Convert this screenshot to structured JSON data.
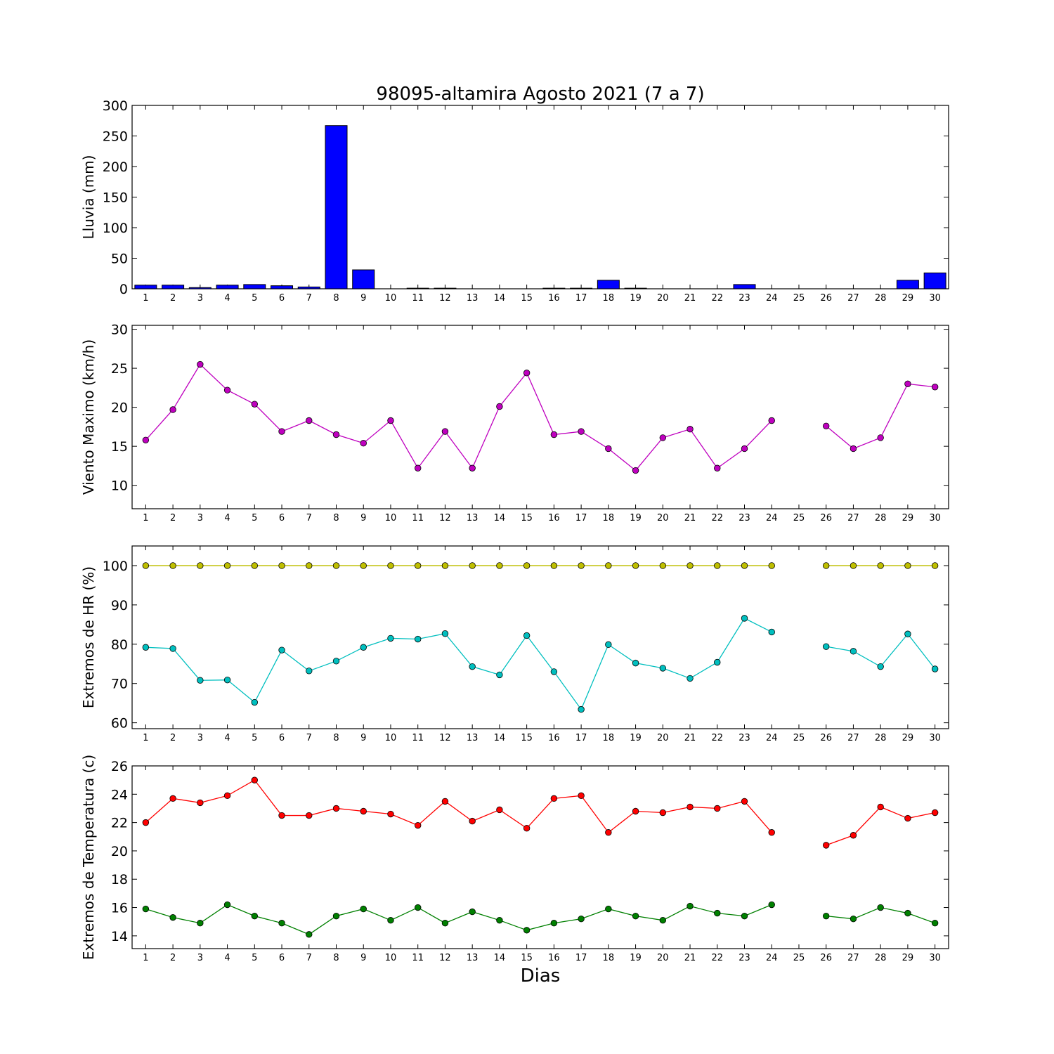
{
  "chart_data": {
    "title": "98095-altamira Agosto 2021  (7 a 7)",
    "xlabel": "Dias",
    "x": [
      1,
      2,
      3,
      4,
      5,
      6,
      7,
      8,
      9,
      10,
      11,
      12,
      13,
      14,
      15,
      16,
      17,
      18,
      19,
      20,
      21,
      22,
      23,
      24,
      25,
      26,
      27,
      28,
      29,
      30
    ],
    "x_tick_labels": [
      "1",
      "2",
      "3",
      "4",
      "5",
      "6",
      "7",
      "8",
      "9",
      "10",
      "11",
      "12",
      "13",
      "14",
      "15",
      "16",
      "17",
      "18",
      "19",
      "20",
      "21",
      "22",
      "23",
      "24",
      "25",
      "26",
      "27",
      "28",
      "29",
      "30"
    ],
    "panels": [
      {
        "type": "bar",
        "ylabel": "Lluvia (mm)",
        "ylim": [
          0,
          300
        ],
        "yticks": [
          0,
          50,
          100,
          150,
          200,
          250,
          300
        ],
        "series": [
          {
            "color": "#0000ff",
            "values": [
              6,
              6,
              2,
              6,
              7,
              5,
              3,
              267,
              31,
              0,
              1,
              1,
              0,
              0,
              0,
              1,
              1,
              14,
              1,
              0,
              0,
              0,
              7,
              0,
              0,
              0,
              0,
              0,
              14,
              26
            ]
          }
        ]
      },
      {
        "type": "line",
        "ylabel": "Viento Maximo (km/h)",
        "ylim": [
          7,
          30.5
        ],
        "yticks": [
          10,
          15,
          20,
          25,
          30
        ],
        "series": [
          {
            "color": "#bf00bf",
            "values": [
              15.8,
              19.7,
              25.5,
              22.2,
              20.4,
              16.9,
              18.3,
              16.5,
              15.4,
              18.3,
              12.2,
              16.9,
              12.2,
              20.1,
              24.4,
              16.5,
              16.9,
              14.7,
              11.9,
              16.1,
              17.2,
              12.2,
              14.7,
              18.3,
              null,
              17.6,
              14.7,
              16.1,
              23.0,
              22.6
            ]
          }
        ]
      },
      {
        "type": "line",
        "ylabel": "Extremos de HR (%)",
        "ylim": [
          58.5,
          105
        ],
        "yticks": [
          60,
          70,
          80,
          90,
          100
        ],
        "series": [
          {
            "color": "#bfbf00",
            "values": [
              100,
              100,
              100,
              100,
              100,
              100,
              100,
              100,
              100,
              100,
              100,
              100,
              100,
              100,
              100,
              100,
              100,
              100,
              100,
              100,
              100,
              100,
              100,
              100,
              null,
              100,
              100,
              100,
              100,
              100
            ]
          },
          {
            "color": "#00bfbf",
            "values": [
              79.2,
              78.9,
              70.8,
              70.9,
              65.2,
              78.5,
              73.2,
              75.7,
              79.2,
              81.5,
              81.3,
              82.7,
              74.3,
              72.2,
              82.2,
              73.0,
              63.4,
              79.9,
              75.2,
              73.9,
              71.3,
              75.4,
              86.6,
              83.1,
              null,
              79.4,
              78.2,
              74.3,
              82.6,
              73.7
            ]
          }
        ]
      },
      {
        "type": "line",
        "ylabel": "Extremos de Temperatura (c)",
        "ylim": [
          13.1,
          26
        ],
        "yticks": [
          14,
          16,
          18,
          20,
          22,
          24,
          26
        ],
        "series": [
          {
            "color": "#ff0000",
            "values": [
              22.0,
              23.7,
              23.4,
              23.9,
              25.0,
              22.5,
              22.5,
              23.0,
              22.8,
              22.6,
              21.8,
              23.5,
              22.1,
              22.9,
              21.6,
              23.7,
              23.9,
              21.3,
              22.8,
              22.7,
              23.1,
              23.0,
              23.5,
              21.3,
              null,
              20.4,
              21.1,
              23.1,
              22.3,
              22.7
            ]
          },
          {
            "color": "#008000",
            "values": [
              15.9,
              15.3,
              14.9,
              16.2,
              15.4,
              14.9,
              14.1,
              15.4,
              15.9,
              15.1,
              16.0,
              14.9,
              15.7,
              15.1,
              14.4,
              14.9,
              15.2,
              15.9,
              15.4,
              15.1,
              16.1,
              15.6,
              15.4,
              16.2,
              null,
              15.4,
              15.2,
              16.0,
              15.6,
              14.9
            ]
          }
        ]
      }
    ]
  }
}
